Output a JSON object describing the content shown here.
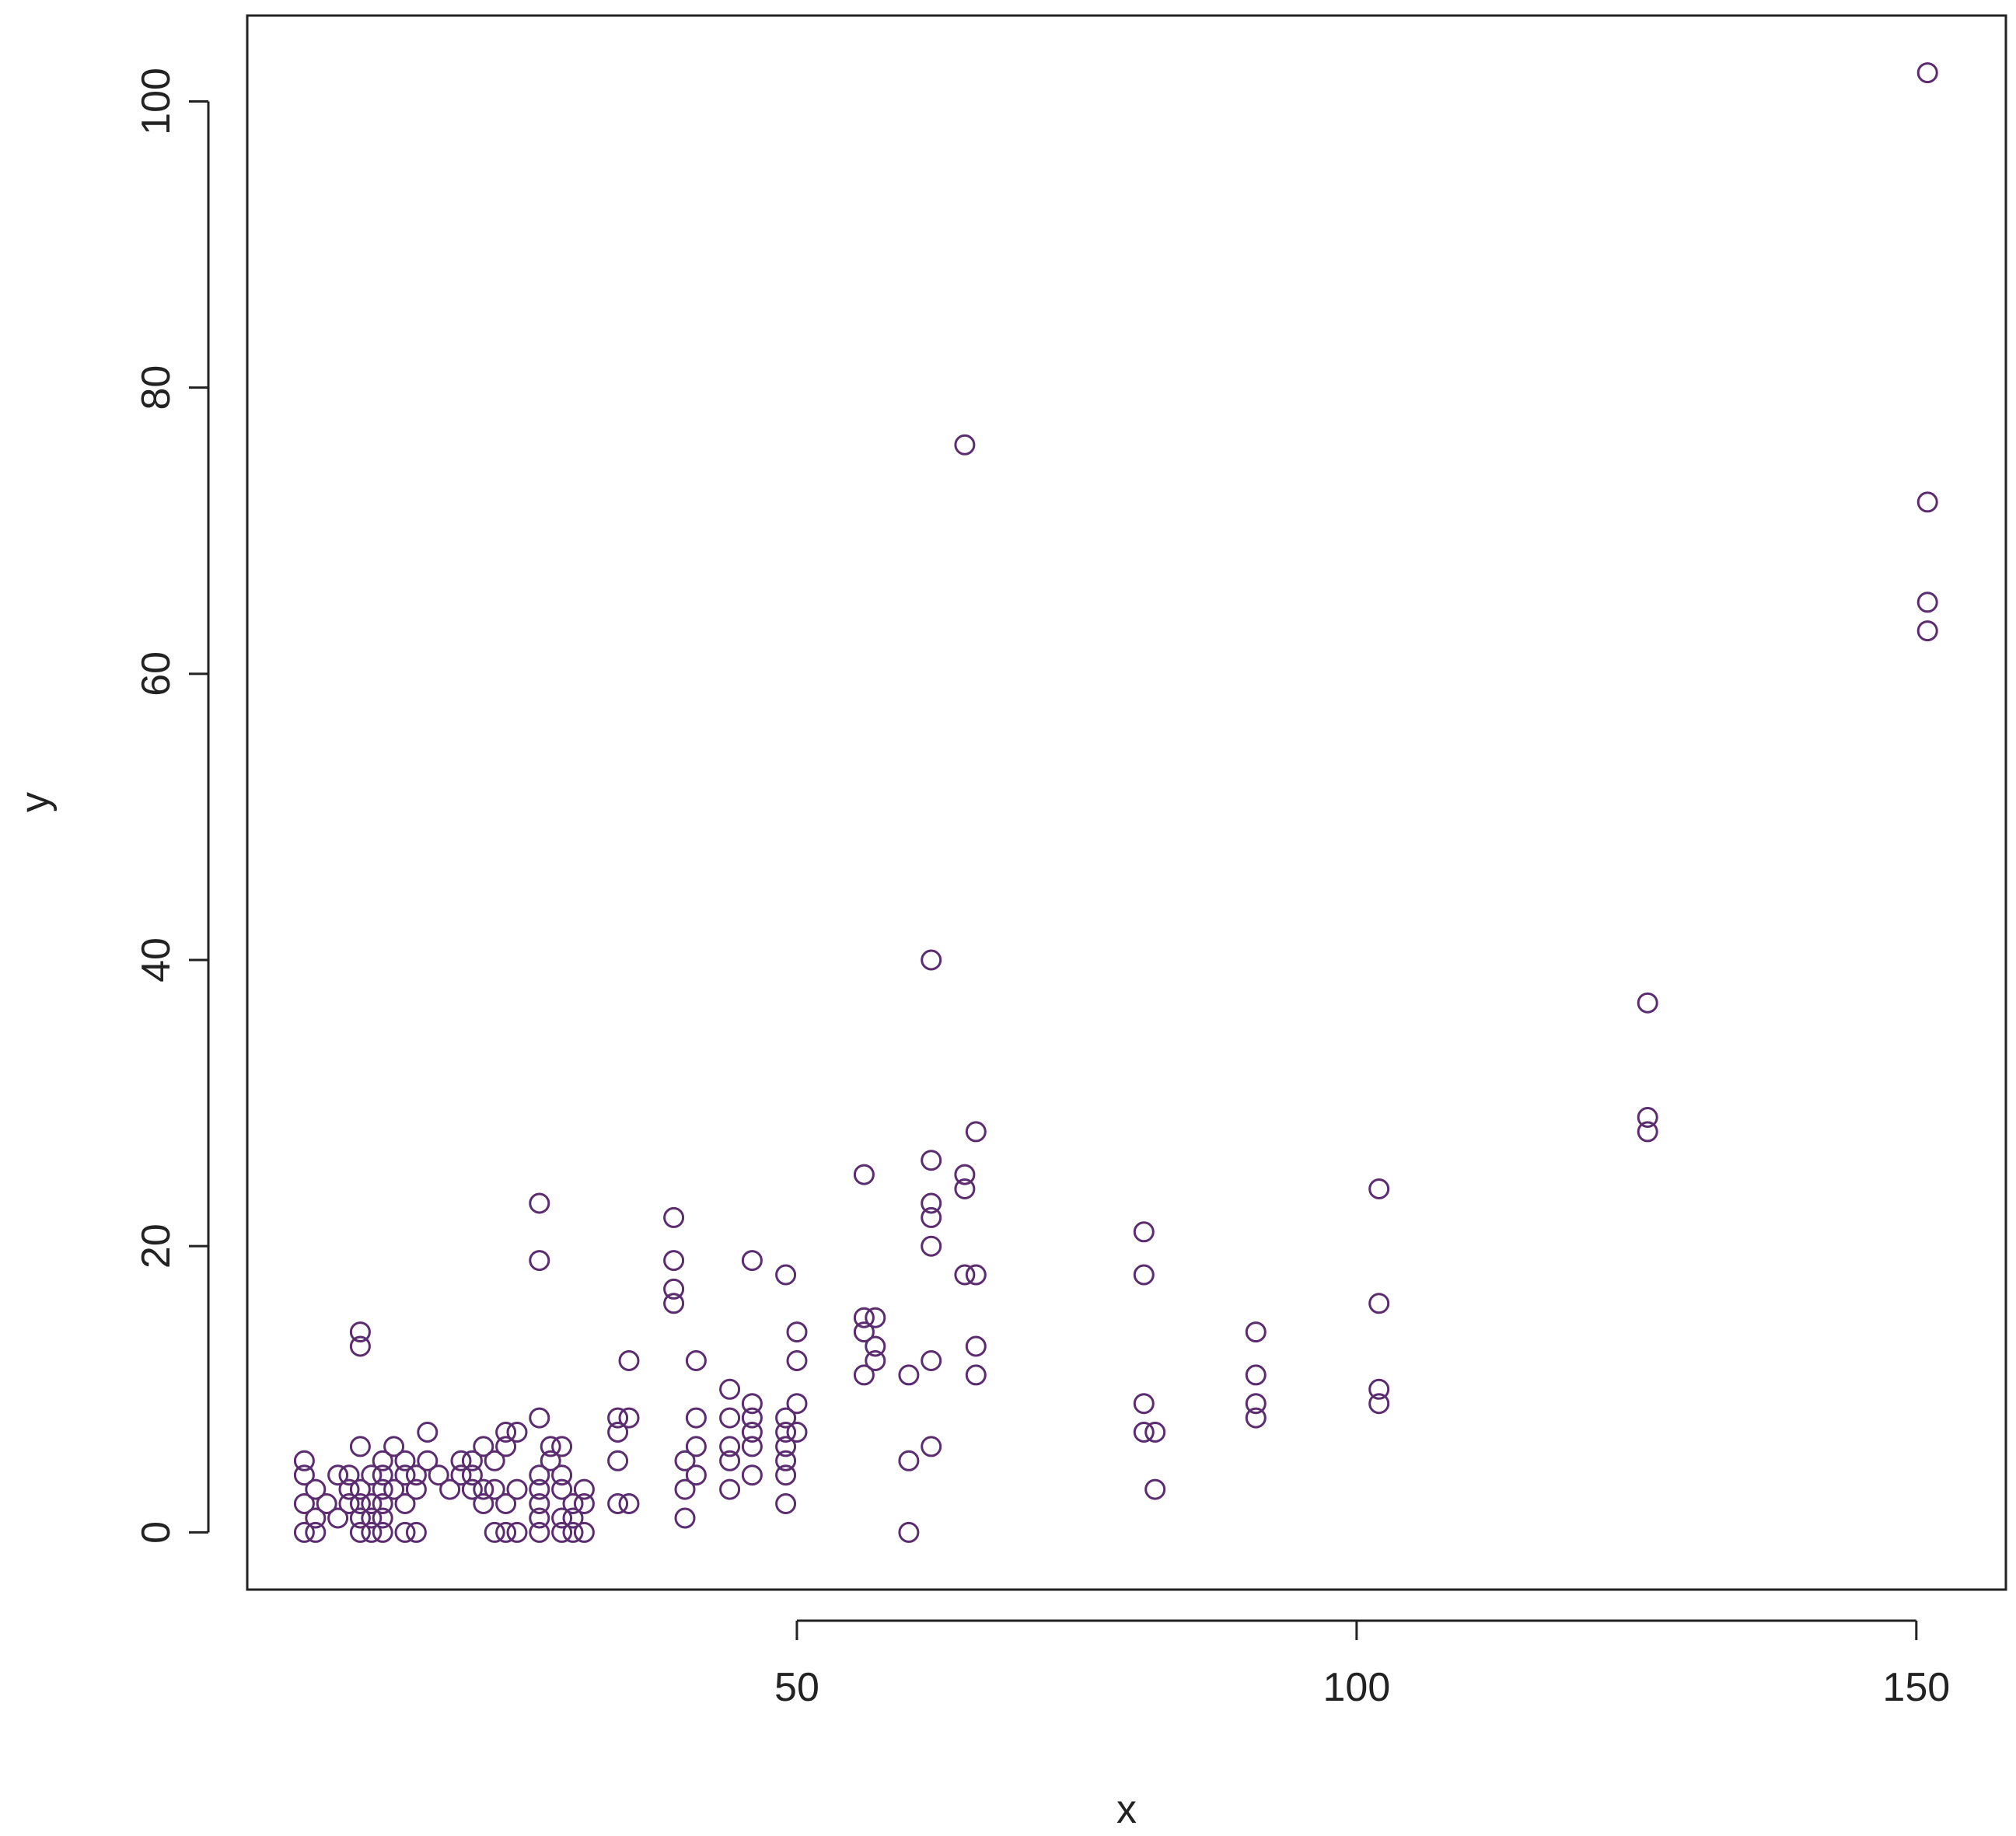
{
  "chart_data": {
    "type": "scatter",
    "title": "",
    "xlabel": "x",
    "ylabel": "y",
    "xlim": [
      0.9,
      158
    ],
    "ylim": [
      -4,
      106
    ],
    "x_ticks": [
      50,
      100,
      150
    ],
    "y_ticks": [
      0,
      20,
      40,
      60,
      80,
      100
    ],
    "x_tick_labels": [
      "50",
      "100",
      "150"
    ],
    "y_tick_labels": [
      "0",
      "20",
      "40",
      "60",
      "80",
      "100"
    ],
    "grid": false,
    "legend": "none",
    "marker": "open-circle",
    "marker_color": "#5b2c6f",
    "axis_color": "#222222",
    "series": [
      {
        "points": [
          [
            6,
            0
          ],
          [
            6,
            2
          ],
          [
            6,
            4
          ],
          [
            6,
            5
          ],
          [
            7,
            0
          ],
          [
            7,
            1
          ],
          [
            7,
            3
          ],
          [
            8,
            2
          ],
          [
            9,
            1
          ],
          [
            9,
            4
          ],
          [
            10,
            2
          ],
          [
            10,
            3
          ],
          [
            10,
            4
          ],
          [
            11,
            0
          ],
          [
            11,
            1
          ],
          [
            11,
            2
          ],
          [
            11,
            3
          ],
          [
            11,
            6
          ],
          [
            11,
            13
          ],
          [
            11,
            14
          ],
          [
            12,
            0
          ],
          [
            12,
            1
          ],
          [
            12,
            2
          ],
          [
            12,
            4
          ],
          [
            13,
            0
          ],
          [
            13,
            1
          ],
          [
            13,
            2
          ],
          [
            13,
            3
          ],
          [
            13,
            4
          ],
          [
            13,
            5
          ],
          [
            14,
            3
          ],
          [
            14,
            6
          ],
          [
            15,
            0
          ],
          [
            15,
            2
          ],
          [
            15,
            4
          ],
          [
            15,
            5
          ],
          [
            16,
            0
          ],
          [
            16,
            3
          ],
          [
            16,
            4
          ],
          [
            17,
            5
          ],
          [
            17,
            7
          ],
          [
            18,
            4
          ],
          [
            19,
            3
          ],
          [
            20,
            4
          ],
          [
            20,
            5
          ],
          [
            21,
            3
          ],
          [
            21,
            4
          ],
          [
            21,
            5
          ],
          [
            22,
            2
          ],
          [
            22,
            3
          ],
          [
            22,
            6
          ],
          [
            23,
            0
          ],
          [
            23,
            3
          ],
          [
            23,
            5
          ],
          [
            24,
            0
          ],
          [
            24,
            2
          ],
          [
            24,
            6
          ],
          [
            24,
            7
          ],
          [
            25,
            0
          ],
          [
            25,
            3
          ],
          [
            25,
            7
          ],
          [
            27,
            0
          ],
          [
            27,
            1
          ],
          [
            27,
            2
          ],
          [
            27,
            3
          ],
          [
            27,
            4
          ],
          [
            27,
            8
          ],
          [
            27,
            19
          ],
          [
            27,
            23
          ],
          [
            28,
            5
          ],
          [
            28,
            6
          ],
          [
            29,
            0
          ],
          [
            29,
            1
          ],
          [
            29,
            3
          ],
          [
            29,
            4
          ],
          [
            29,
            6
          ],
          [
            30,
            0
          ],
          [
            30,
            1
          ],
          [
            30,
            2
          ],
          [
            31,
            0
          ],
          [
            31,
            2
          ],
          [
            31,
            3
          ],
          [
            34,
            2
          ],
          [
            34,
            5
          ],
          [
            34,
            7
          ],
          [
            34,
            8
          ],
          [
            35,
            2
          ],
          [
            35,
            8
          ],
          [
            35,
            12
          ],
          [
            39,
            16
          ],
          [
            39,
            17
          ],
          [
            39,
            19
          ],
          [
            39,
            22
          ],
          [
            40,
            1
          ],
          [
            40,
            3
          ],
          [
            40,
            5
          ],
          [
            41,
            4
          ],
          [
            41,
            6
          ],
          [
            41,
            8
          ],
          [
            41,
            12
          ],
          [
            44,
            3
          ],
          [
            44,
            5
          ],
          [
            44,
            6
          ],
          [
            44,
            8
          ],
          [
            44,
            10
          ],
          [
            46,
            4
          ],
          [
            46,
            6
          ],
          [
            46,
            7
          ],
          [
            46,
            8
          ],
          [
            46,
            9
          ],
          [
            46,
            19
          ],
          [
            49,
            2
          ],
          [
            49,
            4
          ],
          [
            49,
            5
          ],
          [
            49,
            6
          ],
          [
            49,
            7
          ],
          [
            49,
            8
          ],
          [
            49,
            18
          ],
          [
            50,
            7
          ],
          [
            50,
            9
          ],
          [
            50,
            12
          ],
          [
            50,
            14
          ],
          [
            56,
            11
          ],
          [
            56,
            14
          ],
          [
            56,
            15
          ],
          [
            56,
            25
          ],
          [
            57,
            12
          ],
          [
            57,
            13
          ],
          [
            57,
            15
          ],
          [
            60,
            0
          ],
          [
            60,
            5
          ],
          [
            60,
            11
          ],
          [
            62,
            6
          ],
          [
            62,
            12
          ],
          [
            62,
            20
          ],
          [
            62,
            22
          ],
          [
            62,
            23
          ],
          [
            62,
            26
          ],
          [
            62,
            40
          ],
          [
            65,
            18
          ],
          [
            65,
            24
          ],
          [
            65,
            25
          ],
          [
            65,
            76
          ],
          [
            66,
            11
          ],
          [
            66,
            13
          ],
          [
            66,
            18
          ],
          [
            66,
            28
          ],
          [
            81,
            7
          ],
          [
            81,
            9
          ],
          [
            81,
            18
          ],
          [
            81,
            21
          ],
          [
            82,
            3
          ],
          [
            82,
            7
          ],
          [
            91,
            8
          ],
          [
            91,
            9
          ],
          [
            91,
            11
          ],
          [
            91,
            14
          ],
          [
            102,
            9
          ],
          [
            102,
            10
          ],
          [
            102,
            16
          ],
          [
            102,
            24
          ],
          [
            126,
            28
          ],
          [
            126,
            29
          ],
          [
            126,
            37
          ],
          [
            151,
            63
          ],
          [
            151,
            65
          ],
          [
            151,
            72
          ],
          [
            151,
            102
          ]
        ]
      }
    ]
  }
}
